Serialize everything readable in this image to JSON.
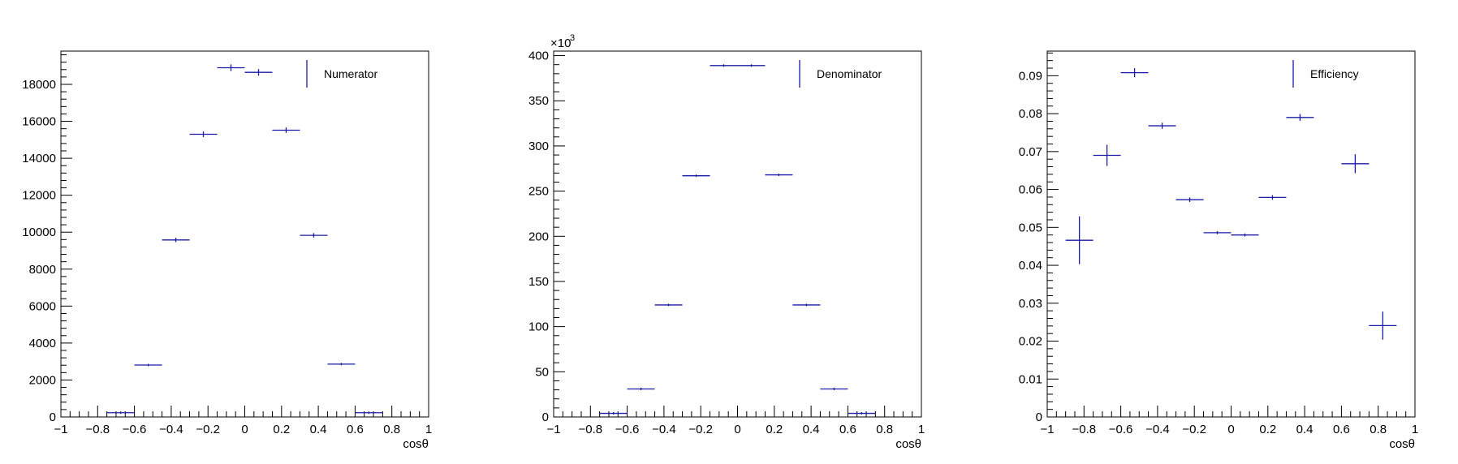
{
  "colors": {
    "marker": "#1a1aa6",
    "axis": "#000000",
    "background": "#ffffff"
  },
  "chart_data": [
    {
      "type": "scatter",
      "title": "",
      "xlabel": "cosθ",
      "ylabel": "",
      "xlim": [
        -1,
        1
      ],
      "ylim": [
        0,
        19800
      ],
      "y_multiplier_label": "",
      "x_ticks": [
        "−1",
        "−0.8",
        "−0.6",
        "−0.4",
        "−0.2",
        "0",
        "0.2",
        "0.4",
        "0.6",
        "0.8",
        "1"
      ],
      "y_ticks": [
        "0",
        "2000",
        "4000",
        "6000",
        "8000",
        "10000",
        "12000",
        "14000",
        "16000",
        "18000"
      ],
      "y_tick_values": [
        0,
        2000,
        4000,
        6000,
        8000,
        10000,
        12000,
        14000,
        16000,
        18000
      ],
      "legend": {
        "label": "Numerator",
        "position": "top-right"
      },
      "series": [
        {
          "name": "Numerator",
          "points": [
            {
              "x": -0.675,
              "xerr": 0.075,
              "y": 230,
              "yerr": 20
            },
            {
              "x": -0.525,
              "xerr": 0.075,
              "y": 2810,
              "yerr": 60
            },
            {
              "x": -0.375,
              "xerr": 0.075,
              "y": 9580,
              "yerr": 120
            },
            {
              "x": -0.225,
              "xerr": 0.075,
              "y": 15300,
              "yerr": 150
            },
            {
              "x": -0.075,
              "xerr": 0.075,
              "y": 18900,
              "yerr": 180
            },
            {
              "x": 0.075,
              "xerr": 0.075,
              "y": 18650,
              "yerr": 180
            },
            {
              "x": 0.225,
              "xerr": 0.075,
              "y": 15520,
              "yerr": 150
            },
            {
              "x": 0.375,
              "xerr": 0.075,
              "y": 9830,
              "yerr": 120
            },
            {
              "x": 0.525,
              "xerr": 0.075,
              "y": 2860,
              "yerr": 60
            },
            {
              "x": 0.675,
              "xerr": 0.075,
              "y": 230,
              "yerr": 20
            }
          ]
        }
      ]
    },
    {
      "type": "scatter",
      "title": "",
      "xlabel": "cosθ",
      "ylabel": "",
      "xlim": [
        -1,
        1
      ],
      "ylim": [
        0,
        405
      ],
      "y_multiplier_label": "×10",
      "y_multiplier_exponent": "3",
      "x_ticks": [
        "−1",
        "−0.8",
        "−0.6",
        "−0.4",
        "−0.2",
        "0",
        "0.2",
        "0.4",
        "0.6",
        "0.8",
        "1"
      ],
      "y_ticks": [
        "0",
        "50",
        "100",
        "150",
        "200",
        "250",
        "300",
        "350",
        "400"
      ],
      "y_tick_values": [
        0,
        50,
        100,
        150,
        200,
        250,
        300,
        350,
        400
      ],
      "legend": {
        "label": "Denominator",
        "position": "top-right"
      },
      "series": [
        {
          "name": "Denominator",
          "points": [
            {
              "x": -0.675,
              "xerr": 0.075,
              "y": 4,
              "yerr": 0.1
            },
            {
              "x": -0.525,
              "xerr": 0.075,
              "y": 31,
              "yerr": 0.2
            },
            {
              "x": -0.375,
              "xerr": 0.075,
              "y": 124,
              "yerr": 0.4
            },
            {
              "x": -0.225,
              "xerr": 0.075,
              "y": 267,
              "yerr": 0.5
            },
            {
              "x": -0.075,
              "xerr": 0.075,
              "y": 389,
              "yerr": 0.6
            },
            {
              "x": 0.075,
              "xerr": 0.075,
              "y": 389,
              "yerr": 0.6
            },
            {
              "x": 0.225,
              "xerr": 0.075,
              "y": 268,
              "yerr": 0.5
            },
            {
              "x": 0.375,
              "xerr": 0.075,
              "y": 124,
              "yerr": 0.4
            },
            {
              "x": 0.525,
              "xerr": 0.075,
              "y": 31,
              "yerr": 0.2
            },
            {
              "x": 0.675,
              "xerr": 0.075,
              "y": 4,
              "yerr": 0.1
            }
          ]
        }
      ]
    },
    {
      "type": "scatter",
      "title": "",
      "xlabel": "cosθ",
      "ylabel": "",
      "xlim": [
        -1,
        1
      ],
      "ylim": [
        0,
        0.0965
      ],
      "y_multiplier_label": "",
      "x_ticks": [
        "−1",
        "−0.8",
        "−0.6",
        "−0.4",
        "−0.2",
        "0",
        "0.2",
        "0.4",
        "0.6",
        "0.8",
        "1"
      ],
      "y_ticks": [
        "0",
        "0.01",
        "0.02",
        "0.03",
        "0.04",
        "0.05",
        "0.06",
        "0.07",
        "0.08",
        "0.09"
      ],
      "y_tick_values": [
        0,
        0.01,
        0.02,
        0.03,
        0.04,
        0.05,
        0.06,
        0.07,
        0.08,
        0.09
      ],
      "legend": {
        "label": "Efficiency",
        "position": "top-right"
      },
      "series": [
        {
          "name": "Efficiency",
          "points": [
            {
              "x": -0.825,
              "xerr": 0.075,
              "y": 0.0466,
              "yerr": 0.0063
            },
            {
              "x": -0.675,
              "xerr": 0.075,
              "y": 0.069,
              "yerr": 0.0028
            },
            {
              "x": -0.525,
              "xerr": 0.075,
              "y": 0.0908,
              "yerr": 0.0012
            },
            {
              "x": -0.375,
              "xerr": 0.075,
              "y": 0.0768,
              "yerr": 0.0008
            },
            {
              "x": -0.225,
              "xerr": 0.075,
              "y": 0.0573,
              "yerr": 0.0006
            },
            {
              "x": -0.075,
              "xerr": 0.075,
              "y": 0.0486,
              "yerr": 0.0004
            },
            {
              "x": 0.075,
              "xerr": 0.075,
              "y": 0.048,
              "yerr": 0.0004
            },
            {
              "x": 0.225,
              "xerr": 0.075,
              "y": 0.0579,
              "yerr": 0.0006
            },
            {
              "x": 0.375,
              "xerr": 0.075,
              "y": 0.079,
              "yerr": 0.0009
            },
            {
              "x": 0.675,
              "xerr": 0.075,
              "y": 0.0668,
              "yerr": 0.0025
            },
            {
              "x": 0.825,
              "xerr": 0.075,
              "y": 0.0241,
              "yerr": 0.0037
            }
          ]
        }
      ]
    }
  ]
}
